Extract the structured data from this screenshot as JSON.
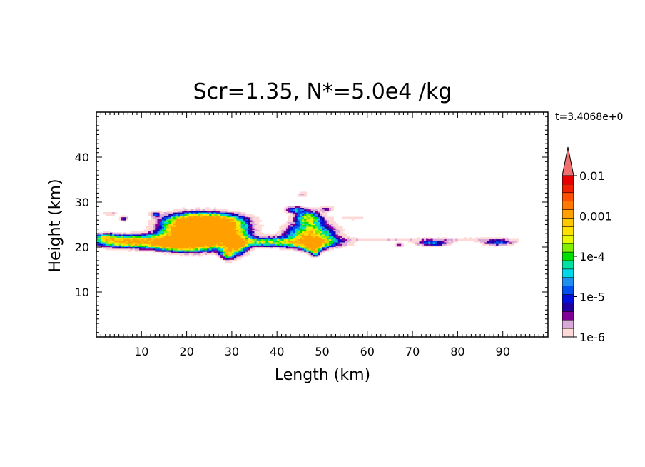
{
  "chart_data": {
    "type": "heatmap",
    "title": "Scr=1.35, N*=5.0e4 /kg",
    "time_label": "t=3.4068e+0",
    "xlabel": "Length  (km)",
    "ylabel": "Height  (km)",
    "xlim": [
      0,
      100
    ],
    "ylim": [
      0,
      50
    ],
    "x_ticks": [
      10,
      20,
      30,
      40,
      50,
      60,
      70,
      80,
      90
    ],
    "y_ticks": [
      10,
      20,
      30,
      40
    ],
    "grid": false,
    "colorbar": {
      "labels": [
        "0.01",
        "0.001",
        "1e-4",
        "1e-5",
        "1e-6"
      ],
      "colors": [
        "#ffd8d8",
        "#d8a8d8",
        "#800098",
        "#2000a0",
        "#0010d8",
        "#0050f0",
        "#2090f0",
        "#00d8e8",
        "#00e0a0",
        "#00e000",
        "#80f000",
        "#e8f800",
        "#ffe000",
        "#ffc800",
        "#ffa000",
        "#ff7800",
        "#ff5000",
        "#f02000",
        "#e80000",
        "#f07070"
      ]
    },
    "cloud_regions": [
      {
        "x": [
          0.5,
          35
        ],
        "y": [
          19,
          28
        ],
        "max_value": "0.001"
      },
      {
        "x": [
          41,
          57
        ],
        "y": [
          18,
          32
        ],
        "max_value": "0.001"
      },
      {
        "x": [
          55,
          98
        ],
        "y": [
          20.5,
          27
        ],
        "max_value": "1e-4"
      }
    ]
  }
}
